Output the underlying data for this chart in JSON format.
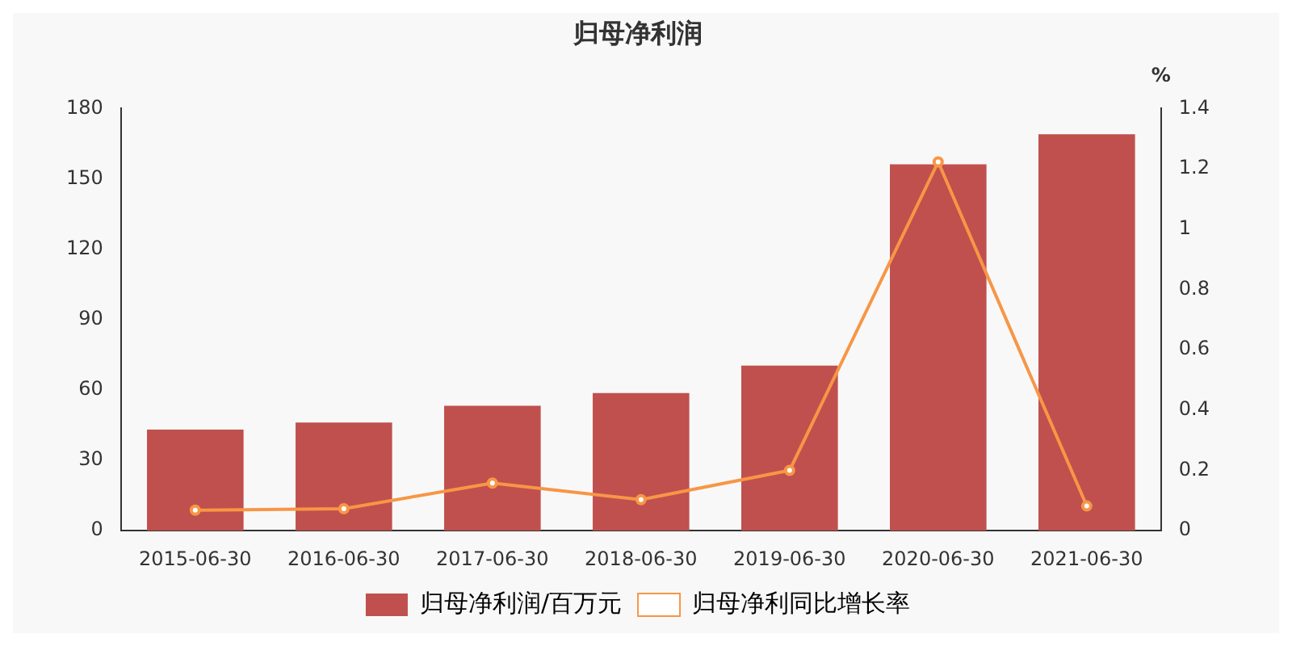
{
  "chart_data": {
    "type": "bar",
    "title": "归母净利润",
    "y2label": "%",
    "categories": [
      "2015-06-30",
      "2016-06-30",
      "2017-06-30",
      "2018-06-30",
      "2019-06-30",
      "2020-06-30",
      "2021-06-30"
    ],
    "series": [
      {
        "name": "归母净利润/百万元",
        "color": "#c0504d",
        "values": [
          43.1,
          46.1,
          53.3,
          58.7,
          70.4,
          156.2,
          169
        ]
      },
      {
        "name": "归母净利同比增长率",
        "type": "line",
        "axis": "y2",
        "color": "#f79646",
        "values": [
          0.068,
          0.073,
          0.158,
          0.103,
          0.2,
          1.223,
          0.082
        ]
      }
    ],
    "ylim": [
      0,
      180
    ],
    "yticks": [
      0,
      30,
      60,
      90,
      120,
      150,
      180
    ],
    "y2lim": [
      0,
      1.4
    ],
    "y2ticks": [
      0,
      0.2,
      0.4,
      0.6,
      0.8,
      1,
      1.2,
      1.4
    ],
    "legend": "bottom",
    "grid": false,
    "marker": "circle"
  }
}
